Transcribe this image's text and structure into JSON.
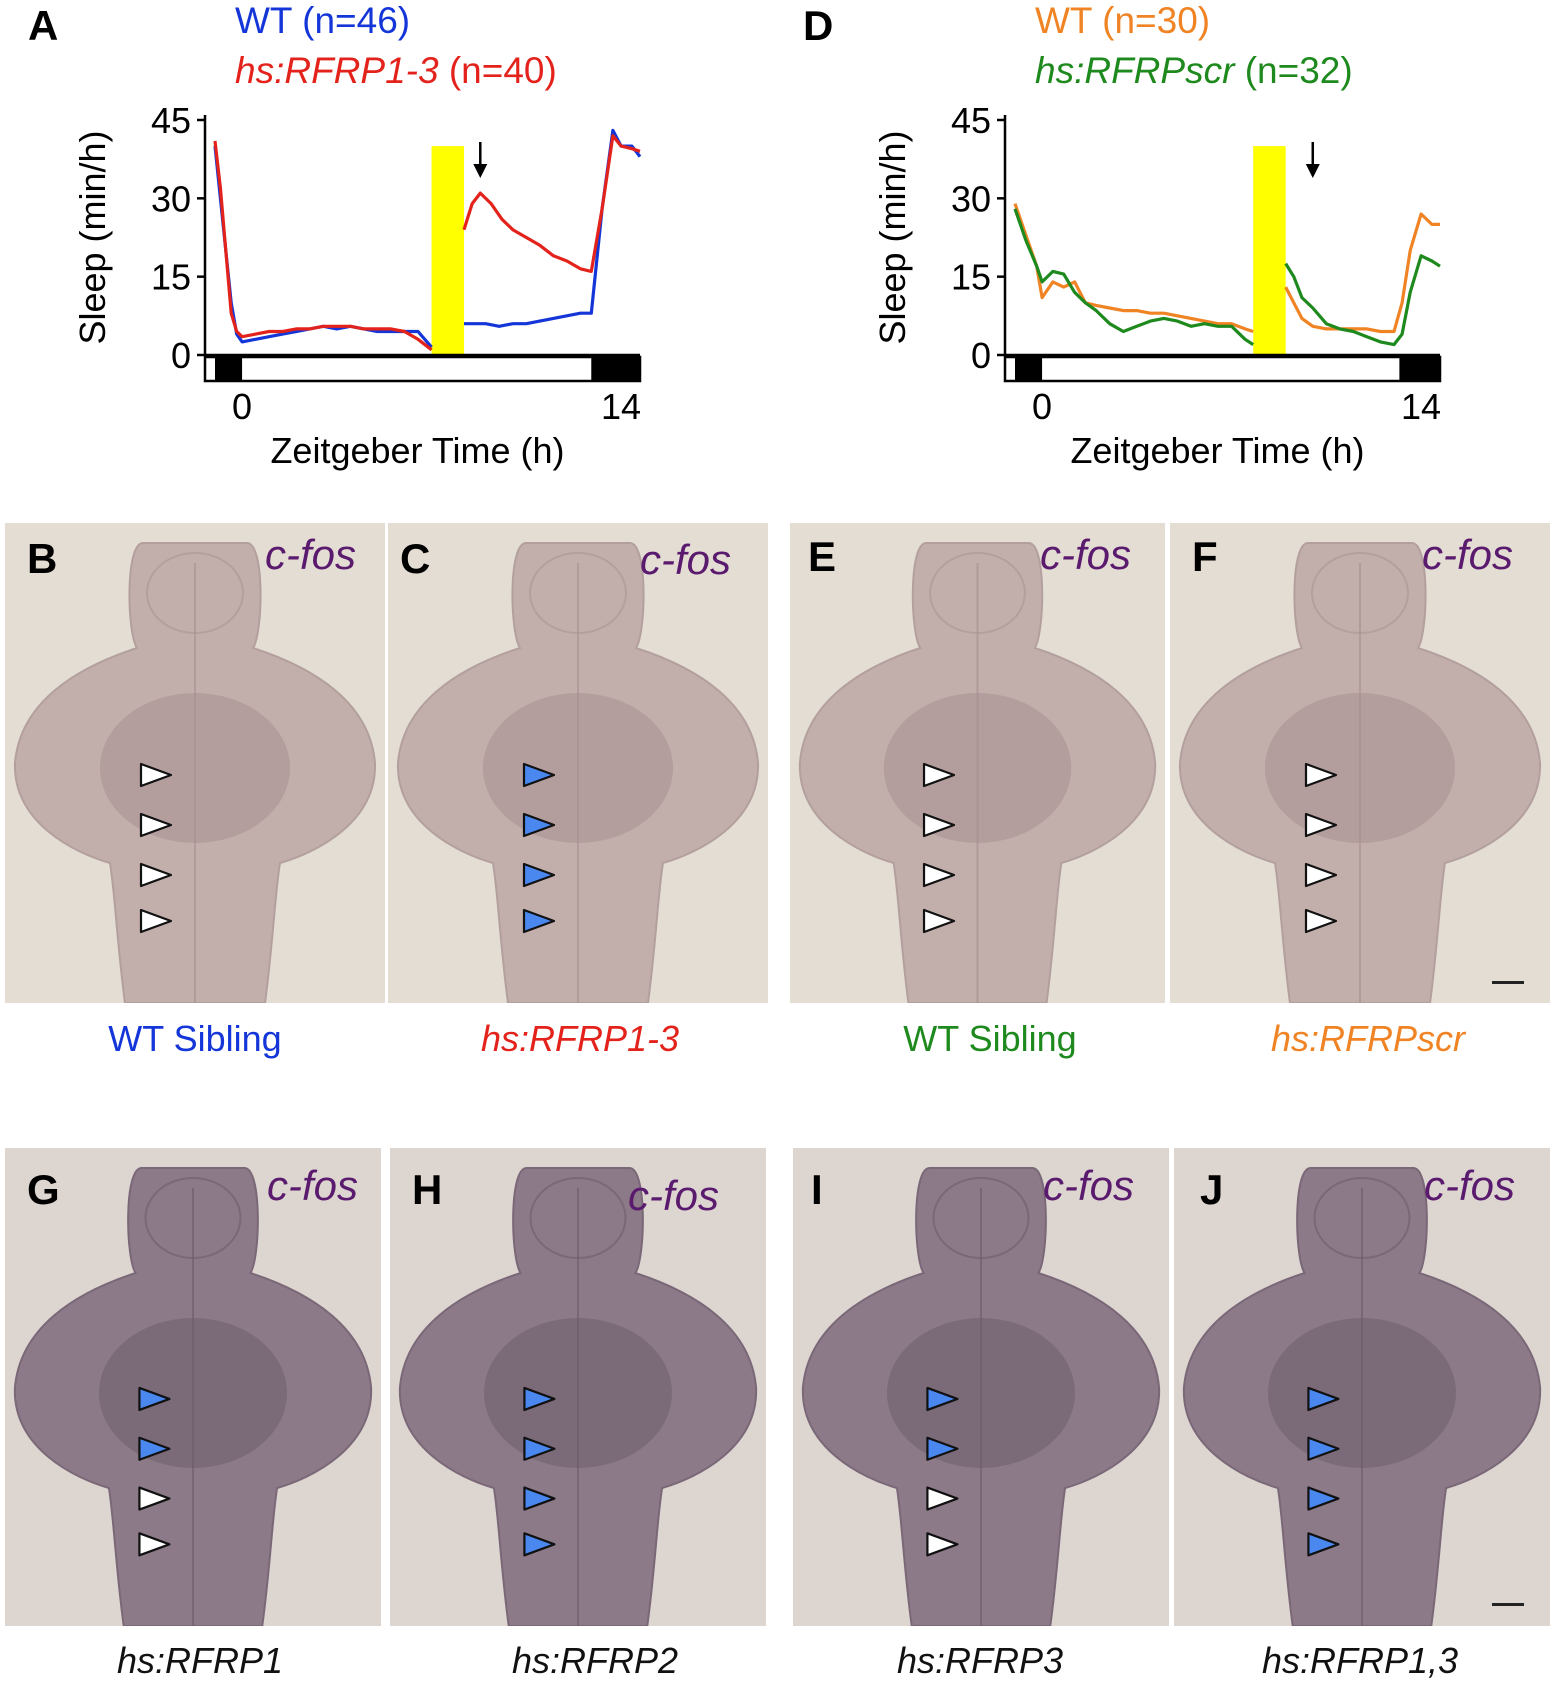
{
  "panel_letters": [
    "A",
    "D",
    "B",
    "C",
    "E",
    "F",
    "G",
    "H",
    "I",
    "J"
  ],
  "colors": {
    "wt_a": "#1436d8",
    "tg_a": "#e3231b",
    "wt_d": "#f08424",
    "tg_d": "#1e8a1e",
    "yellow": "#ffff00",
    "cfos": "#5a1a6e",
    "blue_arrow": "#4a88f0"
  },
  "chart_data": [
    {
      "type": "line",
      "panel": "A",
      "xlabel": "Zeitgeber Time (h)",
      "ylabel": "Sleep (min/h)",
      "xticks": [
        "0",
        "14"
      ],
      "yticks": [
        "0",
        "15",
        "30",
        "45"
      ],
      "xlim": [
        -1,
        14.7
      ],
      "ylim": [
        0,
        45
      ],
      "yellow_band": [
        7.0,
        8.2
      ],
      "dark_periods": [
        [
          -1,
          0
        ],
        [
          12.9,
          14.7
        ]
      ],
      "arrow_x": 8.8,
      "legend_position": "top-left",
      "series": [
        {
          "name": "WT",
          "n": "(n=46)",
          "color": "#1436d8",
          "x": [
            -1,
            -0.8,
            -0.6,
            -0.4,
            -0.2,
            0,
            0.5,
            1,
            1.5,
            2,
            2.5,
            3,
            3.5,
            4,
            4.5,
            5,
            5.5,
            6,
            6.5,
            7,
            8.2,
            9,
            9.5,
            10,
            10.5,
            11,
            11.5,
            12,
            12.5,
            12.9,
            13.3,
            13.7,
            14,
            14.4,
            14.7
          ],
          "y": [
            40,
            30,
            20,
            10,
            4,
            2.5,
            3,
            3.5,
            4,
            4.5,
            5,
            5.5,
            5,
            5.5,
            5,
            4.5,
            4.5,
            4.5,
            4.5,
            1.5,
            6,
            6,
            5.5,
            6,
            6,
            6.5,
            7,
            7.5,
            8,
            8,
            28,
            43,
            40,
            40,
            38
          ]
        },
        {
          "name": "hs:RFRP1-3",
          "n": "(n=40)",
          "color": "#e3231b",
          "x": [
            -1,
            -0.8,
            -0.6,
            -0.4,
            -0.2,
            0,
            0.5,
            1,
            1.5,
            2,
            2.5,
            3,
            3.5,
            4,
            4.5,
            5,
            5.5,
            6,
            6.5,
            7,
            8.2,
            8.5,
            8.8,
            9.2,
            9.6,
            10,
            10.5,
            11,
            11.5,
            12,
            12.5,
            12.9,
            13.3,
            13.7,
            14,
            14.4,
            14.7
          ],
          "y": [
            41,
            32,
            20,
            8,
            4.5,
            3.5,
            4,
            4.5,
            4.5,
            5,
            5,
            5.5,
            5.5,
            5.5,
            5,
            5,
            5,
            4.5,
            3,
            1,
            24,
            29,
            31,
            29,
            26,
            24,
            22.5,
            21,
            19,
            18,
            16.5,
            16,
            28,
            42,
            40,
            39.5,
            39
          ]
        }
      ]
    },
    {
      "type": "line",
      "panel": "D",
      "xlabel": "Zeitgeber Time (h)",
      "ylabel": "Sleep (min/h)",
      "xticks": [
        "0",
        "14"
      ],
      "yticks": [
        "0",
        "15",
        "30",
        "45"
      ],
      "xlim": [
        -1,
        14.7
      ],
      "ylim": [
        0,
        45
      ],
      "yellow_band": [
        7.8,
        9.0
      ],
      "dark_periods": [
        [
          -1,
          0
        ],
        [
          13.2,
          14.7
        ]
      ],
      "arrow_x": 10.0,
      "legend_position": "top-left",
      "series": [
        {
          "name": "WT",
          "n": "(n=30)",
          "color": "#f08424",
          "x": [
            -1,
            -0.6,
            -0.2,
            0,
            0.4,
            0.8,
            1.2,
            1.6,
            2,
            2.5,
            3,
            3.5,
            4,
            4.5,
            5,
            5.5,
            6,
            6.5,
            7,
            7.5,
            7.8,
            9.0,
            9.3,
            9.6,
            10,
            10.5,
            11,
            11.5,
            12,
            12.5,
            13,
            13.3,
            13.6,
            14,
            14.4,
            14.7
          ],
          "y": [
            29,
            23,
            17,
            11,
            14,
            13,
            14,
            10,
            9.5,
            9,
            8.5,
            8.5,
            8,
            8,
            7.5,
            7,
            6.5,
            6,
            6,
            5,
            4.5,
            13,
            10,
            7,
            5.5,
            5,
            5,
            5,
            5,
            4.5,
            4.5,
            10,
            20,
            27,
            25,
            25
          ]
        },
        {
          "name": "hs:RFRPscr",
          "n": "(n=32)",
          "color": "#1e8a1e",
          "x": [
            -1,
            -0.6,
            -0.2,
            0,
            0.4,
            0.8,
            1.2,
            1.6,
            2,
            2.5,
            3,
            3.5,
            4,
            4.5,
            5,
            5.5,
            6,
            6.5,
            7,
            7.5,
            7.8,
            9.0,
            9.3,
            9.6,
            10,
            10.5,
            11,
            11.5,
            12,
            12.5,
            13,
            13.3,
            13.6,
            14,
            14.4,
            14.7
          ],
          "y": [
            28,
            22,
            17,
            14,
            16,
            15.5,
            12,
            10,
            8.5,
            6,
            4.5,
            5.5,
            6.5,
            7,
            6.5,
            5.5,
            6,
            5.5,
            5.5,
            3,
            2,
            17.5,
            15,
            11,
            9,
            6,
            5,
            4.5,
            3.5,
            2.5,
            2,
            4,
            12,
            19,
            18,
            17
          ]
        }
      ]
    }
  ],
  "legend_a": {
    "wt_name": "WT",
    "wt_n": "(n=46)",
    "tg_name": "hs:RFRP1-3",
    "tg_n": "(n=40)"
  },
  "legend_d": {
    "wt_name": "WT",
    "wt_n": "(n=30)",
    "tg_name": "hs:RFRPscr",
    "tg_n": "(n=32)"
  },
  "stain_label": "c-fos",
  "captions_row1": {
    "b": "WT Sibling",
    "c": "hs:RFRP1-3",
    "e": "WT Sibling",
    "f": "hs:RFRPscr"
  },
  "captions_row2": {
    "g": "hs:RFRP1",
    "h": "hs:RFRP2",
    "i": "hs:RFRP3",
    "j": "hs:RFRP1,3"
  },
  "arrowheads": {
    "B": [
      "white",
      "white",
      "white",
      "white"
    ],
    "C": [
      "blue",
      "blue",
      "blue",
      "blue"
    ],
    "E": [
      "white",
      "white",
      "white",
      "white"
    ],
    "F": [
      "white",
      "white",
      "white",
      "white"
    ],
    "G": [
      "blue",
      "blue",
      "white",
      "white"
    ],
    "H": [
      "blue",
      "blue",
      "blue",
      "blue"
    ],
    "I": [
      "blue",
      "blue",
      "white",
      "white"
    ],
    "J": [
      "blue",
      "blue",
      "blue",
      "blue"
    ]
  }
}
